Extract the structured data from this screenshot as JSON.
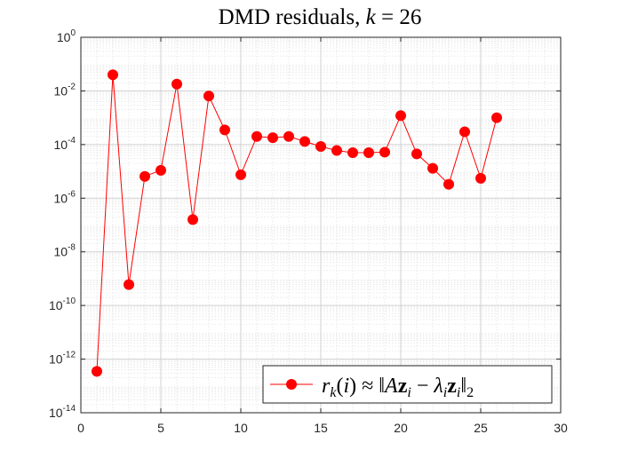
{
  "chart_data": {
    "type": "line",
    "title": "DMD residuals, k = 26",
    "title_parts": {
      "prefix": "DMD residuals, ",
      "var": "k",
      "rest": " = 26"
    },
    "xlabel": "",
    "ylabel": "",
    "xlim": [
      0,
      30
    ],
    "ylim": [
      1e-14,
      1
    ],
    "yscale": "log",
    "grid": true,
    "minor_grid": true,
    "legend_placement": "bottom-right",
    "x_ticks": [
      "0",
      "5",
      "10",
      "15",
      "20",
      "25",
      "30"
    ],
    "y_ticks": [
      {
        "base": "10",
        "exp": "0"
      },
      {
        "base": "10",
        "exp": "-2"
      },
      {
        "base": "10",
        "exp": "-4"
      },
      {
        "base": "10",
        "exp": "-6"
      },
      {
        "base": "10",
        "exp": "-8"
      },
      {
        "base": "10",
        "exp": "-10"
      },
      {
        "base": "10",
        "exp": "-12"
      },
      {
        "base": "10",
        "exp": "-14"
      }
    ],
    "series": [
      {
        "name": "r_k(i) ≈ ‖Az_i − λ_i z_i‖_2",
        "color": "#ff0000",
        "marker": "circle",
        "x": [
          1,
          2,
          3,
          4,
          5,
          6,
          7,
          8,
          9,
          10,
          11,
          12,
          13,
          14,
          15,
          16,
          17,
          18,
          19,
          20,
          21,
          22,
          23,
          24,
          25,
          26
        ],
        "y": [
          3.5e-13,
          0.04,
          6e-10,
          6.5e-06,
          1.1e-05,
          0.018,
          1.6e-07,
          0.0065,
          0.00035,
          7.5e-06,
          0.0002,
          0.00018,
          0.0002,
          0.00013,
          8.5e-05,
          6e-05,
          5e-05,
          5e-05,
          5.2e-05,
          0.0012,
          4.5e-05,
          1.3e-05,
          3.3e-06,
          0.0003,
          5.5e-06,
          0.001
        ]
      }
    ]
  }
}
